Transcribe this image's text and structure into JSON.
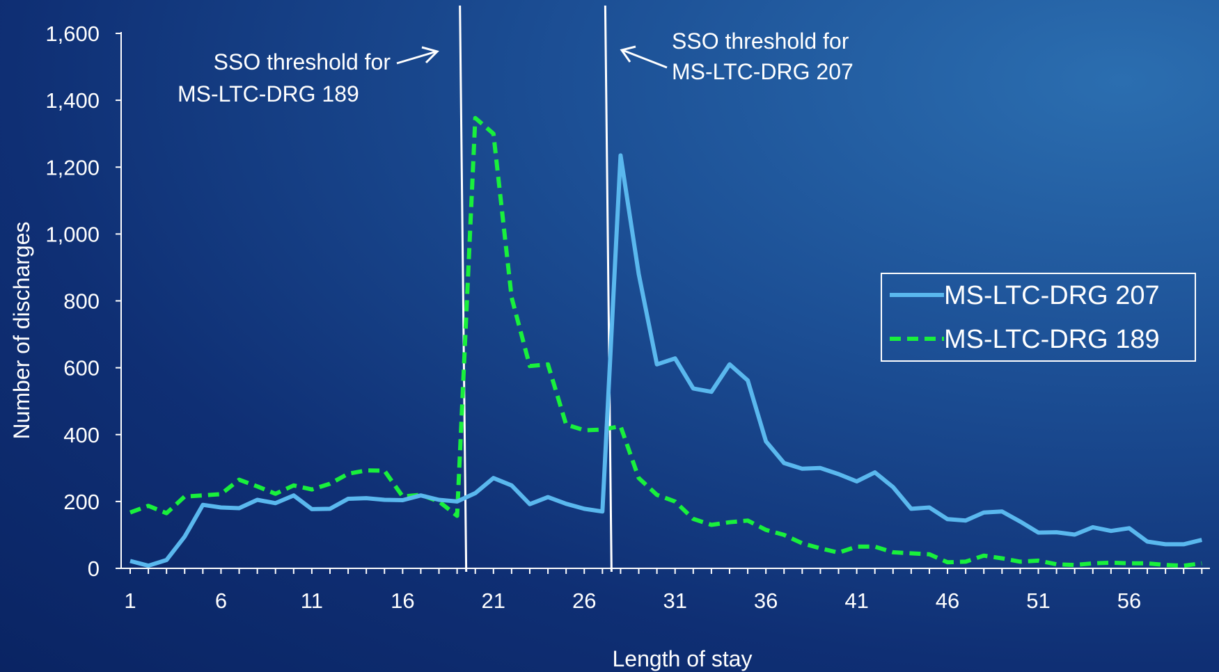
{
  "chart_data": {
    "type": "line",
    "title": "",
    "xlabel": "Length of stay",
    "ylabel": "Number of discharges",
    "ylim": [
      0,
      1600
    ],
    "yticks": [
      0,
      200,
      400,
      600,
      800,
      1000,
      1200,
      1400,
      1600
    ],
    "ytick_labels": [
      "0",
      "200",
      "400",
      "600",
      "800",
      "1,000",
      "1,200",
      "1,400",
      "1,600"
    ],
    "xlim": [
      1,
      60
    ],
    "xtick_labels": [
      "1",
      "6",
      "11",
      "16",
      "21",
      "26",
      "31",
      "36",
      "41",
      "46",
      "51",
      "56"
    ],
    "legend_position": "right",
    "x": [
      1,
      2,
      3,
      4,
      5,
      6,
      7,
      8,
      9,
      10,
      11,
      12,
      13,
      14,
      15,
      16,
      17,
      18,
      19,
      20,
      21,
      22,
      23,
      24,
      25,
      26,
      27,
      28,
      29,
      30,
      31,
      32,
      33,
      34,
      35,
      36,
      37,
      38,
      39,
      40,
      41,
      42,
      43,
      44,
      45,
      46,
      47,
      48,
      49,
      50,
      51,
      52,
      53,
      54,
      55,
      56,
      57,
      58,
      59,
      60
    ],
    "series": [
      {
        "name": "MS-LTC-DRG 207",
        "color": "#5ab8ee",
        "style": "solid",
        "values": [
          22,
          8,
          25,
          95,
          190,
          182,
          180,
          205,
          195,
          218,
          177,
          178,
          208,
          210,
          205,
          204,
          218,
          205,
          200,
          225,
          270,
          248,
          192,
          213,
          193,
          178,
          170,
          1235,
          880,
          610,
          628,
          538,
          528,
          610,
          562,
          380,
          315,
          298,
          300,
          282,
          260,
          287,
          243,
          178,
          182,
          147,
          143,
          167,
          170,
          140,
          107,
          108,
          101,
          123,
          112,
          120,
          80,
          72,
          72,
          85
        ]
      },
      {
        "name": "MS-LTC-DRG 189",
        "color": "#19f03c",
        "style": "dashed",
        "values": [
          167,
          187,
          165,
          215,
          218,
          222,
          265,
          245,
          223,
          248,
          236,
          253,
          283,
          293,
          292,
          215,
          220,
          200,
          157,
          1347,
          1300,
          810,
          605,
          610,
          430,
          413,
          415,
          425,
          270,
          220,
          200,
          148,
          130,
          138,
          143,
          115,
          100,
          75,
          60,
          47,
          65,
          65,
          48,
          45,
          42,
          18,
          20,
          38,
          30,
          20,
          23,
          12,
          10,
          15,
          17,
          15,
          15,
          10,
          8,
          15
        ]
      }
    ],
    "thresholds": [
      {
        "x": 19.5,
        "label_line1": "SSO threshold for",
        "label_line2": "MS-LTC-DRG 189"
      },
      {
        "x": 27.5,
        "label_line1": "SSO threshold for",
        "label_line2": "MS-LTC-DRG 207"
      }
    ]
  }
}
